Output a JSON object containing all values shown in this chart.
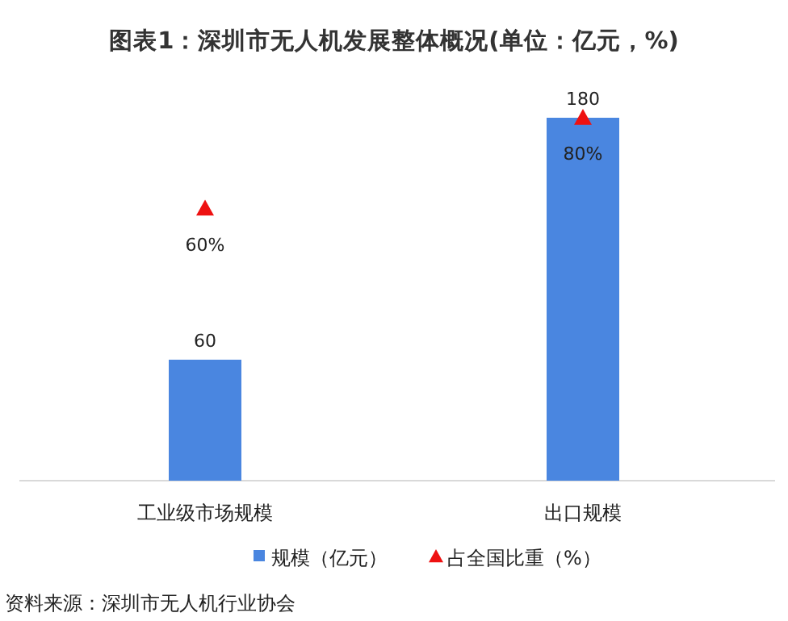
{
  "chart_data": {
    "type": "bar",
    "title": "图表1：深圳市无人机发展整体概况(单位：亿元，%)",
    "categories": [
      "工业级市场规模",
      "出口规模"
    ],
    "series": [
      {
        "name": "规模（亿元）",
        "color": "#4a86e0",
        "values": [
          60,
          180
        ]
      },
      {
        "name": "占全国比重（%）",
        "type": "scatter",
        "axis": "y2",
        "marker": "triangle",
        "color": "#ee1111",
        "values": [
          60,
          80
        ],
        "value_labels": [
          "60%",
          "80%"
        ]
      }
    ],
    "tick_labels": "x",
    "data_labels": true,
    "legend": "bottom",
    "annotations": [
      "资料来源：深圳市无人机行业协会"
    ]
  }
}
